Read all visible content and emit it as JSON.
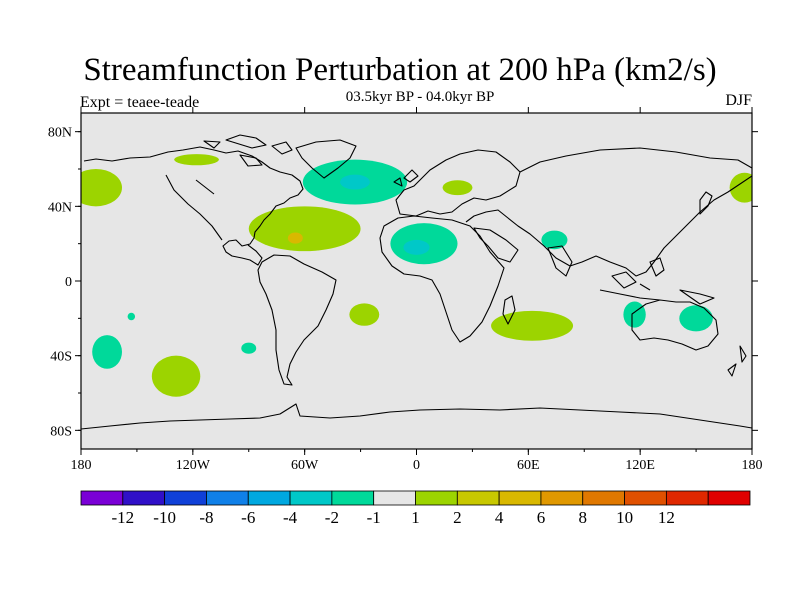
{
  "header": {
    "title": "Streamfunction Perturbation at 200 hPa (km2/s)",
    "subtitle": "03.5kyr BP - 04.0kyr BP",
    "left_label": "Expt = teaee-teade",
    "right_label": "DJF"
  },
  "map": {
    "projection": "equirectangular",
    "lon_range": [
      -180,
      180
    ],
    "lat_range": [
      -90,
      90
    ],
    "ocean_color": "#e6e6e6",
    "coastline_color": "#000000",
    "lat_ticks": [
      {
        "lat": 80,
        "label": "80N"
      },
      {
        "lat": 40,
        "label": "40N"
      },
      {
        "lat": 0,
        "label": "0"
      },
      {
        "lat": -40,
        "label": "40S"
      },
      {
        "lat": -80,
        "label": "80S"
      }
    ],
    "lon_ticks": [
      {
        "lon": -180,
        "label": "180"
      },
      {
        "lon": -120,
        "label": "120W"
      },
      {
        "lon": -60,
        "label": "60W"
      },
      {
        "lon": 0,
        "label": "0"
      },
      {
        "lon": 60,
        "label": "60E"
      },
      {
        "lon": 120,
        "label": "120E"
      },
      {
        "lon": 180,
        "label": "180"
      }
    ],
    "contour_regions": [
      {
        "name": "north-pacific-east",
        "lon": -172,
        "lat": 50,
        "rlon": 14,
        "rlat": 10,
        "level": 2,
        "color": "#9cd400"
      },
      {
        "name": "north-atlantic-negative",
        "lon": -33,
        "lat": 53,
        "rlon": 28,
        "rlat": 12,
        "level": -2,
        "color": "#00d99a"
      },
      {
        "name": "north-atlantic-core",
        "lon": -33,
        "lat": 53,
        "rlon": 8,
        "rlat": 4,
        "level": -4,
        "color": "#00c8c8"
      },
      {
        "name": "caribbean-positive",
        "lon": -60,
        "lat": 28,
        "rlon": 30,
        "rlat": 12,
        "level": 2,
        "color": "#9cd400"
      },
      {
        "name": "caribbean-core",
        "lon": -65,
        "lat": 23,
        "rlon": 4,
        "rlat": 3,
        "level": 4,
        "color": "#d9b800"
      },
      {
        "name": "canada-north",
        "lon": -118,
        "lat": 65,
        "rlon": 12,
        "rlat": 3,
        "level": 2,
        "color": "#9cd400"
      },
      {
        "name": "east-europe",
        "lon": 22,
        "lat": 50,
        "rlon": 8,
        "rlat": 4,
        "level": 2,
        "color": "#9cd400"
      },
      {
        "name": "north-africa-negative",
        "lon": 4,
        "lat": 20,
        "rlon": 18,
        "rlat": 11,
        "level": -2,
        "color": "#00d99a"
      },
      {
        "name": "north-africa-core",
        "lon": 0,
        "lat": 18,
        "rlon": 7,
        "rlat": 4,
        "level": -4,
        "color": "#00c8c8"
      },
      {
        "name": "arabia-negative",
        "lon": 74,
        "lat": 22,
        "rlon": 7,
        "rlat": 5,
        "level": -2,
        "color": "#00d99a"
      },
      {
        "name": "far-east-positive",
        "lon": 176,
        "lat": 50,
        "rlon": 8,
        "rlat": 8,
        "level": 2,
        "color": "#9cd400"
      },
      {
        "name": "south-atlantic-positive",
        "lon": -28,
        "lat": -18,
        "rlon": 8,
        "rlat": 6,
        "level": 2,
        "color": "#9cd400"
      },
      {
        "name": "madagascar-positive",
        "lon": 62,
        "lat": -24,
        "rlon": 22,
        "rlat": 8,
        "level": 2,
        "color": "#9cd400"
      },
      {
        "name": "australia-west-negative",
        "lon": 117,
        "lat": -18,
        "rlon": 6,
        "rlat": 7,
        "level": -2,
        "color": "#00d99a"
      },
      {
        "name": "australia-east-negative",
        "lon": 150,
        "lat": -20,
        "rlon": 9,
        "rlat": 7,
        "level": -2,
        "color": "#00d99a"
      },
      {
        "name": "south-pacific-west",
        "lon": -166,
        "lat": -38,
        "rlon": 8,
        "rlat": 9,
        "level": -2,
        "color": "#00d99a"
      },
      {
        "name": "south-pacific-small",
        "lon": -153,
        "lat": -19,
        "rlon": 2,
        "rlat": 2,
        "level": -2,
        "color": "#00d99a"
      },
      {
        "name": "south-pacific-east",
        "lon": -90,
        "lat": -36,
        "rlon": 4,
        "rlat": 3,
        "level": -2,
        "color": "#00d99a"
      },
      {
        "name": "south-pacific-positive",
        "lon": -129,
        "lat": -51,
        "rlon": 13,
        "rlat": 11,
        "level": 2,
        "color": "#9cd400"
      }
    ]
  },
  "colorbar": {
    "colors": [
      "#7a00d6",
      "#3010c8",
      "#1040d8",
      "#1080e8",
      "#00a8e0",
      "#00c8c8",
      "#00d99a",
      "#e6e6e6",
      "#9cd400",
      "#c8c800",
      "#d9b800",
      "#e09800",
      "#e07800",
      "#e05000",
      "#e02800",
      "#e00000"
    ],
    "labels": [
      "-12",
      "-10",
      "-8",
      "-6",
      "-4",
      "-2",
      "-1",
      "1",
      "2",
      "4",
      "6",
      "8",
      "10",
      "12"
    ]
  }
}
